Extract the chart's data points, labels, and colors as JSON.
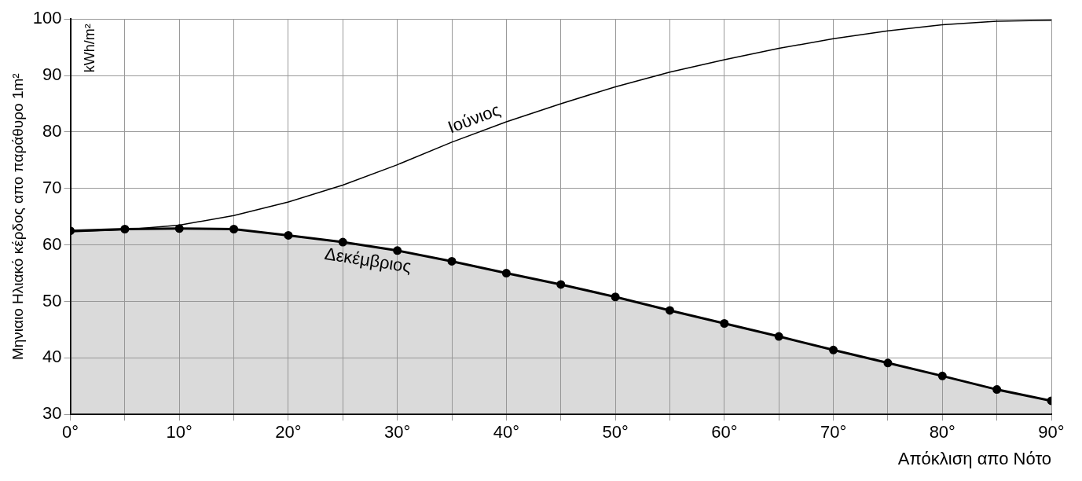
{
  "chart_data": {
    "type": "line",
    "xlabel": "Απόκλιση απο Νότο",
    "ylabel": "Μηνιαιο Ηλιακό κέρδος απο παράθυρο 1m²",
    "annotations": [
      "kWh/m²"
    ],
    "x": [
      0,
      5,
      10,
      15,
      20,
      25,
      30,
      35,
      40,
      45,
      50,
      55,
      60,
      65,
      70,
      75,
      80,
      85,
      90
    ],
    "xlim": [
      0,
      90
    ],
    "xticks": [
      {
        "value": 0,
        "label": "0°"
      },
      {
        "value": 5,
        "label": null
      },
      {
        "value": 10,
        "label": "10°"
      },
      {
        "value": 15,
        "label": null
      },
      {
        "value": 20,
        "label": "20°"
      },
      {
        "value": 25,
        "label": null
      },
      {
        "value": 30,
        "label": "30°"
      },
      {
        "value": 35,
        "label": null
      },
      {
        "value": 40,
        "label": "40°"
      },
      {
        "value": 45,
        "label": null
      },
      {
        "value": 50,
        "label": "50°"
      },
      {
        "value": 55,
        "label": null
      },
      {
        "value": 60,
        "label": "60°"
      },
      {
        "value": 65,
        "label": null
      },
      {
        "value": 70,
        "label": "70°"
      },
      {
        "value": 75,
        "label": null
      },
      {
        "value": 80,
        "label": "80°"
      },
      {
        "value": 85,
        "label": null
      },
      {
        "value": 90,
        "label": "90°"
      }
    ],
    "ylim": [
      30,
      100
    ],
    "yticks": [
      30,
      40,
      50,
      60,
      70,
      80,
      90,
      100
    ],
    "grid": true,
    "legend": false,
    "series": [
      {
        "name": "Ιούνιος",
        "color": "#000000",
        "marker": "none",
        "values": [
          62.3,
          62.7,
          63.5,
          65.2,
          67.6,
          70.6,
          74.2,
          78.2,
          81.8,
          85,
          88,
          90.6,
          92.8,
          94.8,
          96.5,
          97.9,
          99,
          99.6,
          99.8
        ]
      },
      {
        "name": "Δεκέμβριος",
        "color": "#000000",
        "type": "area",
        "marker": "circle",
        "values": [
          62.5,
          62.8,
          62.9,
          62.8,
          61.7,
          60.5,
          59,
          57.1,
          55,
          53,
          50.8,
          48.4,
          46.1,
          43.8,
          41.4,
          39.1,
          36.8,
          34.4,
          32.4
        ]
      }
    ]
  }
}
